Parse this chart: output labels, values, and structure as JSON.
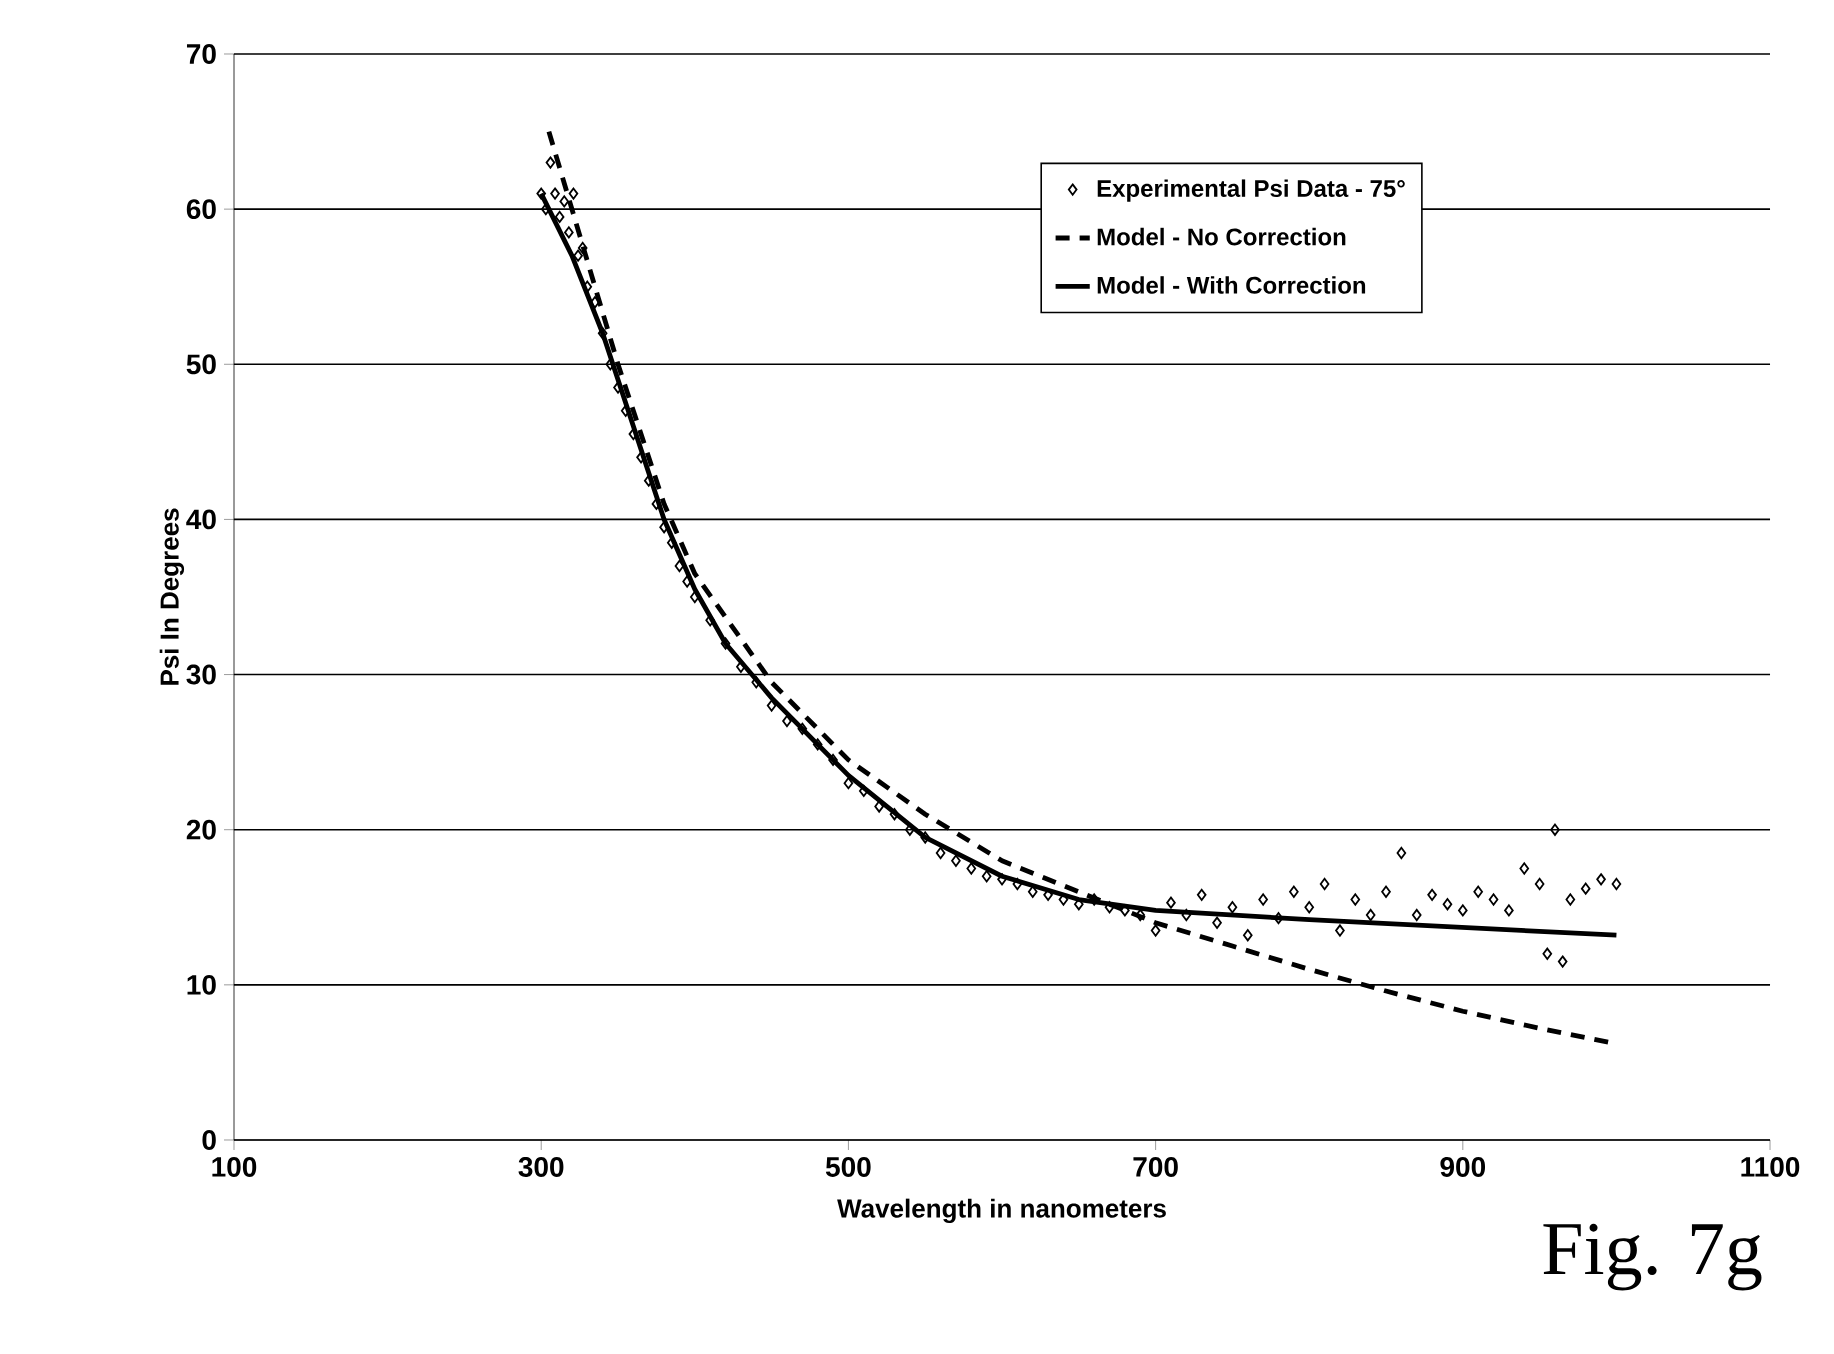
{
  "chart_data": {
    "type": "scatter",
    "xlabel": "Wavelength in nanometers",
    "ylabel": "Psi In Degrees",
    "xlim": [
      100,
      1100
    ],
    "xticks": [
      100,
      300,
      500,
      700,
      900,
      1100
    ],
    "ylim": [
      0,
      70
    ],
    "yticks": [
      0,
      10,
      20,
      30,
      40,
      50,
      60,
      70
    ],
    "grid": "y",
    "legend": "top right",
    "annotations": [
      "Fig. 7g"
    ],
    "series": [
      {
        "name": "Experimental Psi Data - 75°",
        "marker": "diamond",
        "color": "#000000",
        "x": [
          300,
          303,
          306,
          309,
          312,
          315,
          318,
          321,
          324,
          327,
          330,
          335,
          340,
          345,
          350,
          355,
          360,
          365,
          370,
          375,
          380,
          385,
          390,
          395,
          400,
          410,
          420,
          430,
          440,
          450,
          460,
          470,
          480,
          490,
          500,
          510,
          520,
          530,
          540,
          550,
          560,
          570,
          580,
          590,
          600,
          610,
          620,
          630,
          640,
          650,
          660,
          670,
          680,
          690,
          700,
          710,
          720,
          730,
          740,
          750,
          760,
          770,
          780,
          790,
          800,
          810,
          820,
          830,
          840,
          850,
          860,
          870,
          880,
          890,
          900,
          910,
          920,
          930,
          940,
          950,
          955,
          960,
          965,
          970,
          980,
          990,
          1000
        ],
        "values": [
          61,
          60,
          63,
          61,
          59.5,
          60.5,
          58.5,
          61,
          57,
          57.5,
          55,
          54,
          52,
          50,
          48.5,
          47,
          45.5,
          44,
          42.5,
          41,
          39.5,
          38.5,
          37,
          36,
          35,
          33.5,
          32,
          30.5,
          29.5,
          28,
          27,
          26.5,
          25.5,
          24.5,
          23,
          22.5,
          21.5,
          21,
          20,
          19.5,
          18.5,
          18,
          17.5,
          17,
          16.8,
          16.5,
          16,
          15.8,
          15.5,
          15.2,
          15.5,
          15,
          14.8,
          14.5,
          13.5,
          15.3,
          14.5,
          15.8,
          14,
          15,
          13.2,
          15.5,
          14.3,
          16,
          15,
          16.5,
          13.5,
          15.5,
          14.5,
          16,
          18.5,
          14.5,
          15.8,
          15.2,
          14.8,
          16,
          15.5,
          14.8,
          17.5,
          16.5,
          12,
          20,
          11.5,
          15.5,
          16.2,
          16.8,
          16.5
        ]
      },
      {
        "name": "Model - No Correction",
        "type": "line",
        "line_style": "dashed",
        "marker": "none",
        "color": "#000000",
        "x": [
          305,
          320,
          350,
          380,
          400,
          450,
          500,
          550,
          600,
          650,
          700,
          750,
          800,
          850,
          900,
          950,
          1000
        ],
        "values": [
          65,
          60,
          50,
          41,
          36.5,
          29.5,
          24.5,
          21,
          18,
          16,
          14,
          12.5,
          11,
          9.6,
          8.3,
          7.2,
          6.2
        ]
      },
      {
        "name": "Model - With Correction",
        "type": "line",
        "line_style": "solid",
        "marker": "none",
        "color": "#000000",
        "x": [
          300,
          320,
          340,
          360,
          380,
          400,
          420,
          450,
          500,
          550,
          600,
          650,
          700,
          800,
          900,
          1000
        ],
        "values": [
          61,
          57,
          52,
          46,
          40,
          35.5,
          32,
          28.5,
          23.5,
          19.5,
          17,
          15.5,
          14.8,
          14.2,
          13.7,
          13.2
        ]
      }
    ]
  }
}
